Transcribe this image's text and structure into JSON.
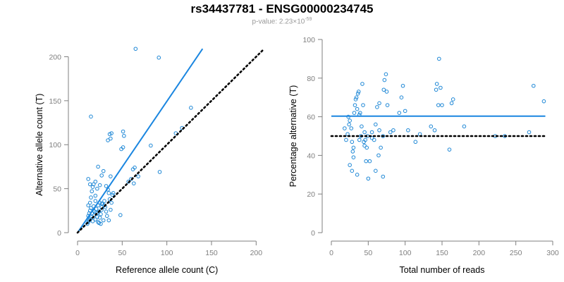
{
  "header": {
    "title": "rs34437781 - ENSG00000234745",
    "pvalue_label": "p-value: 2.23×10",
    "pvalue_exponent": "-59"
  },
  "colors": {
    "point": "#1f88d6",
    "fit_line": "#1a86e0",
    "reference_line": "#000000",
    "axis": "#7f7f7f"
  },
  "chart_data": [
    {
      "type": "scatter",
      "xlabel": "Reference allele count (C)",
      "ylabel": "Alternative allele count (T)",
      "xlim": [
        0,
        210
      ],
      "ylim": [
        0,
        210
      ],
      "xticks": [
        0,
        50,
        100,
        150,
        200
      ],
      "yticks": [
        0,
        50,
        100,
        150,
        200
      ],
      "grid": false,
      "points": [
        [
          11,
          10
        ],
        [
          12,
          12
        ],
        [
          13,
          14
        ],
        [
          14,
          16
        ],
        [
          12,
          19
        ],
        [
          13,
          22
        ],
        [
          14,
          25
        ],
        [
          15,
          28
        ],
        [
          12,
          31
        ],
        [
          14,
          34
        ],
        [
          16,
          22
        ],
        [
          15,
          18
        ],
        [
          17,
          13
        ],
        [
          18,
          25
        ],
        [
          18,
          30
        ],
        [
          19,
          20
        ],
        [
          20,
          15
        ],
        [
          20,
          36
        ],
        [
          20,
          42
        ],
        [
          21,
          27
        ],
        [
          22,
          18
        ],
        [
          22,
          22
        ],
        [
          23,
          12
        ],
        [
          23,
          31
        ],
        [
          24,
          24
        ],
        [
          25,
          17
        ],
        [
          25,
          34
        ],
        [
          26,
          10
        ],
        [
          26,
          21
        ],
        [
          27,
          26
        ],
        [
          27,
          29
        ],
        [
          28,
          33
        ],
        [
          29,
          14
        ],
        [
          30,
          36
        ],
        [
          31,
          29
        ],
        [
          32,
          24
        ],
        [
          33,
          19
        ],
        [
          34,
          49
        ],
        [
          35,
          14
        ],
        [
          36,
          38
        ],
        [
          37,
          26
        ],
        [
          38,
          34
        ],
        [
          39,
          43
        ],
        [
          40,
          45
        ],
        [
          15,
          40
        ],
        [
          16,
          47
        ],
        [
          17,
          52
        ],
        [
          18,
          55
        ],
        [
          20,
          58
        ],
        [
          22,
          50
        ],
        [
          23,
          75
        ],
        [
          25,
          54
        ],
        [
          27,
          65
        ],
        [
          29,
          70
        ],
        [
          32,
          53
        ],
        [
          35,
          45
        ],
        [
          37,
          64
        ],
        [
          36,
          112
        ],
        [
          34,
          105
        ],
        [
          37,
          107
        ],
        [
          38,
          113
        ],
        [
          48,
          20
        ],
        [
          49,
          95
        ],
        [
          51,
          97
        ],
        [
          51,
          115
        ],
        [
          52,
          110
        ],
        [
          57,
          58
        ],
        [
          60,
          61
        ],
        [
          63,
          56
        ],
        [
          62,
          72
        ],
        [
          64,
          74
        ],
        [
          68,
          64
        ],
        [
          82,
          99
        ],
        [
          92,
          69
        ],
        [
          91,
          199
        ],
        [
          65,
          209
        ],
        [
          110,
          113
        ],
        [
          117,
          119
        ],
        [
          127,
          142
        ],
        [
          15,
          132
        ],
        [
          12,
          61
        ],
        [
          14,
          55
        ],
        [
          19,
          24
        ],
        [
          24,
          11
        ],
        [
          27,
          33
        ],
        [
          30,
          31
        ]
      ],
      "fit_line": [
        [
          0,
          0
        ],
        [
          140,
          209
        ]
      ],
      "reference_line": [
        [
          0,
          0
        ],
        [
          209,
          209
        ]
      ]
    },
    {
      "type": "scatter",
      "xlabel": "Total number of reads",
      "ylabel": "Percentage alternative (T)",
      "xlim": [
        0,
        300
      ],
      "ylim": [
        0,
        100
      ],
      "xticks": [
        0,
        50,
        100,
        150,
        200,
        250,
        300
      ],
      "yticks": [
        0,
        20,
        40,
        60,
        80,
        100
      ],
      "grid": false,
      "points": [
        [
          20,
          48
        ],
        [
          22,
          51
        ],
        [
          24,
          56
        ],
        [
          25,
          58
        ],
        [
          23,
          60
        ],
        [
          27,
          54
        ],
        [
          28,
          47
        ],
        [
          29,
          42
        ],
        [
          30,
          39
        ],
        [
          31,
          62
        ],
        [
          32,
          66
        ],
        [
          33,
          69
        ],
        [
          34,
          70
        ],
        [
          35,
          64
        ],
        [
          36,
          72
        ],
        [
          37,
          73
        ],
        [
          38,
          61
        ],
        [
          39,
          62
        ],
        [
          40,
          50
        ],
        [
          41,
          55
        ],
        [
          42,
          77
        ],
        [
          43,
          66
        ],
        [
          44,
          47
        ],
        [
          45,
          52
        ],
        [
          46,
          48
        ],
        [
          47,
          37
        ],
        [
          48,
          44
        ],
        [
          49,
          50
        ],
        [
          50,
          28
        ],
        [
          52,
          37
        ],
        [
          55,
          52
        ],
        [
          58,
          48
        ],
        [
          60,
          56
        ],
        [
          62,
          65
        ],
        [
          64,
          40
        ],
        [
          65,
          67
        ],
        [
          67,
          44
        ],
        [
          70,
          50
        ],
        [
          70,
          29
        ],
        [
          71,
          74
        ],
        [
          72,
          79
        ],
        [
          74,
          82
        ],
        [
          75,
          73
        ],
        [
          76,
          66
        ],
        [
          80,
          52
        ],
        [
          84,
          53
        ],
        [
          92,
          62
        ],
        [
          95,
          70
        ],
        [
          97,
          76
        ],
        [
          100,
          63
        ],
        [
          104,
          53
        ],
        [
          114,
          47
        ],
        [
          120,
          51
        ],
        [
          135,
          55
        ],
        [
          140,
          53
        ],
        [
          142,
          74
        ],
        [
          143,
          77
        ],
        [
          145,
          66
        ],
        [
          146,
          90
        ],
        [
          148,
          75
        ],
        [
          150,
          66
        ],
        [
          160,
          43
        ],
        [
          163,
          67
        ],
        [
          165,
          69
        ],
        [
          180,
          55
        ],
        [
          222,
          50
        ],
        [
          235,
          50
        ],
        [
          268,
          52
        ],
        [
          274,
          76
        ],
        [
          288,
          68
        ],
        [
          30,
          44
        ],
        [
          28,
          32
        ],
        [
          35,
          30
        ],
        [
          60,
          32
        ],
        [
          18,
          54
        ],
        [
          25,
          35
        ],
        [
          45,
          45
        ],
        [
          55,
          49
        ],
        [
          65,
          53
        ],
        [
          38,
          48
        ]
      ],
      "fit_line": [
        [
          0,
          60.3
        ],
        [
          290,
          60.3
        ]
      ],
      "reference_line": [
        [
          0,
          50
        ],
        [
          290,
          50
        ]
      ]
    }
  ]
}
